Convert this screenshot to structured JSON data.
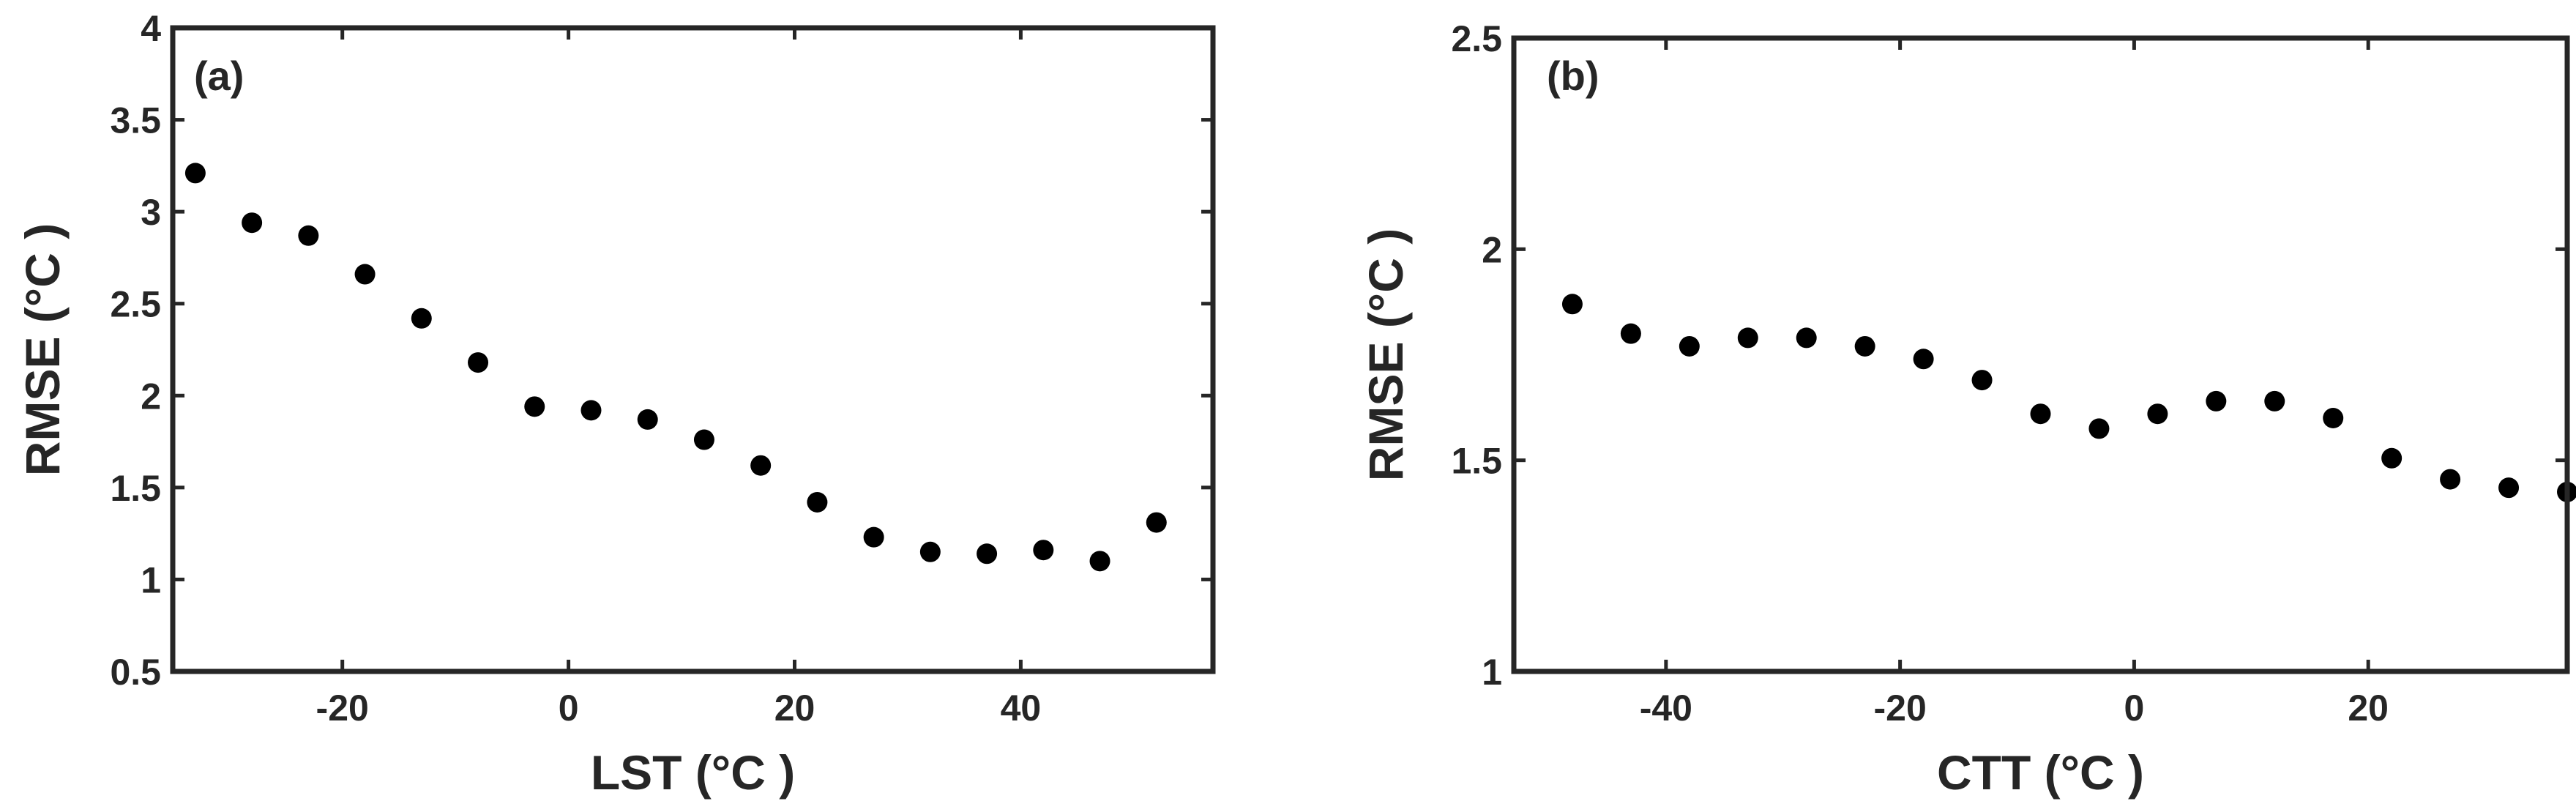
{
  "chart_data": [
    {
      "type": "scatter",
      "panel_label": "(a)",
      "xlabel": "LST (°C )",
      "ylabel": "RMSE (°C )",
      "xlim": [
        -35,
        57
      ],
      "ylim": [
        0.5,
        4
      ],
      "xticks": [
        -20,
        0,
        20,
        40
      ],
      "yticks": [
        0.5,
        1,
        1.5,
        2,
        2.5,
        3,
        3.5,
        4
      ],
      "ytick_labels": [
        "0.5",
        "1",
        "1.5",
        "2",
        "2.5",
        "3",
        "3.5",
        "4"
      ],
      "grid": false,
      "points": [
        {
          "x": -33,
          "y": 3.21
        },
        {
          "x": -28,
          "y": 2.94
        },
        {
          "x": -23,
          "y": 2.87
        },
        {
          "x": -18,
          "y": 2.66
        },
        {
          "x": -13,
          "y": 2.42
        },
        {
          "x": -8,
          "y": 2.18
        },
        {
          "x": -3,
          "y": 1.94
        },
        {
          "x": 2,
          "y": 1.92
        },
        {
          "x": 7,
          "y": 1.87
        },
        {
          "x": 12,
          "y": 1.76
        },
        {
          "x": 17,
          "y": 1.62
        },
        {
          "x": 22,
          "y": 1.42
        },
        {
          "x": 27,
          "y": 1.23
        },
        {
          "x": 32,
          "y": 1.15
        },
        {
          "x": 37,
          "y": 1.14
        },
        {
          "x": 42,
          "y": 1.16
        },
        {
          "x": 47,
          "y": 1.1
        },
        {
          "x": 52,
          "y": 1.31
        }
      ]
    },
    {
      "type": "scatter",
      "panel_label": "(b)",
      "xlabel": "CTT (°C )",
      "ylabel": "RMSE (°C )",
      "xlim": [
        -53,
        37
      ],
      "ylim": [
        1,
        2.5
      ],
      "xticks": [
        -40,
        -20,
        0,
        20
      ],
      "yticks": [
        1,
        1.5,
        2,
        2.5
      ],
      "ytick_labels": [
        "1",
        "1.5",
        "2",
        "2.5"
      ],
      "grid": false,
      "points": [
        {
          "x": -48,
          "y": 1.87
        },
        {
          "x": -43,
          "y": 1.8
        },
        {
          "x": -38,
          "y": 1.77
        },
        {
          "x": -33,
          "y": 1.79
        },
        {
          "x": -28,
          "y": 1.79
        },
        {
          "x": -23,
          "y": 1.77
        },
        {
          "x": -18,
          "y": 1.74
        },
        {
          "x": -13,
          "y": 1.69
        },
        {
          "x": -8,
          "y": 1.61
        },
        {
          "x": -3,
          "y": 1.575
        },
        {
          "x": 2,
          "y": 1.61
        },
        {
          "x": 7,
          "y": 1.64
        },
        {
          "x": 12,
          "y": 1.64
        },
        {
          "x": 17,
          "y": 1.6
        },
        {
          "x": 22,
          "y": 1.505
        },
        {
          "x": 27,
          "y": 1.455
        },
        {
          "x": 32,
          "y": 1.435
        },
        {
          "x": 37,
          "y": 1.425
        }
      ]
    }
  ]
}
